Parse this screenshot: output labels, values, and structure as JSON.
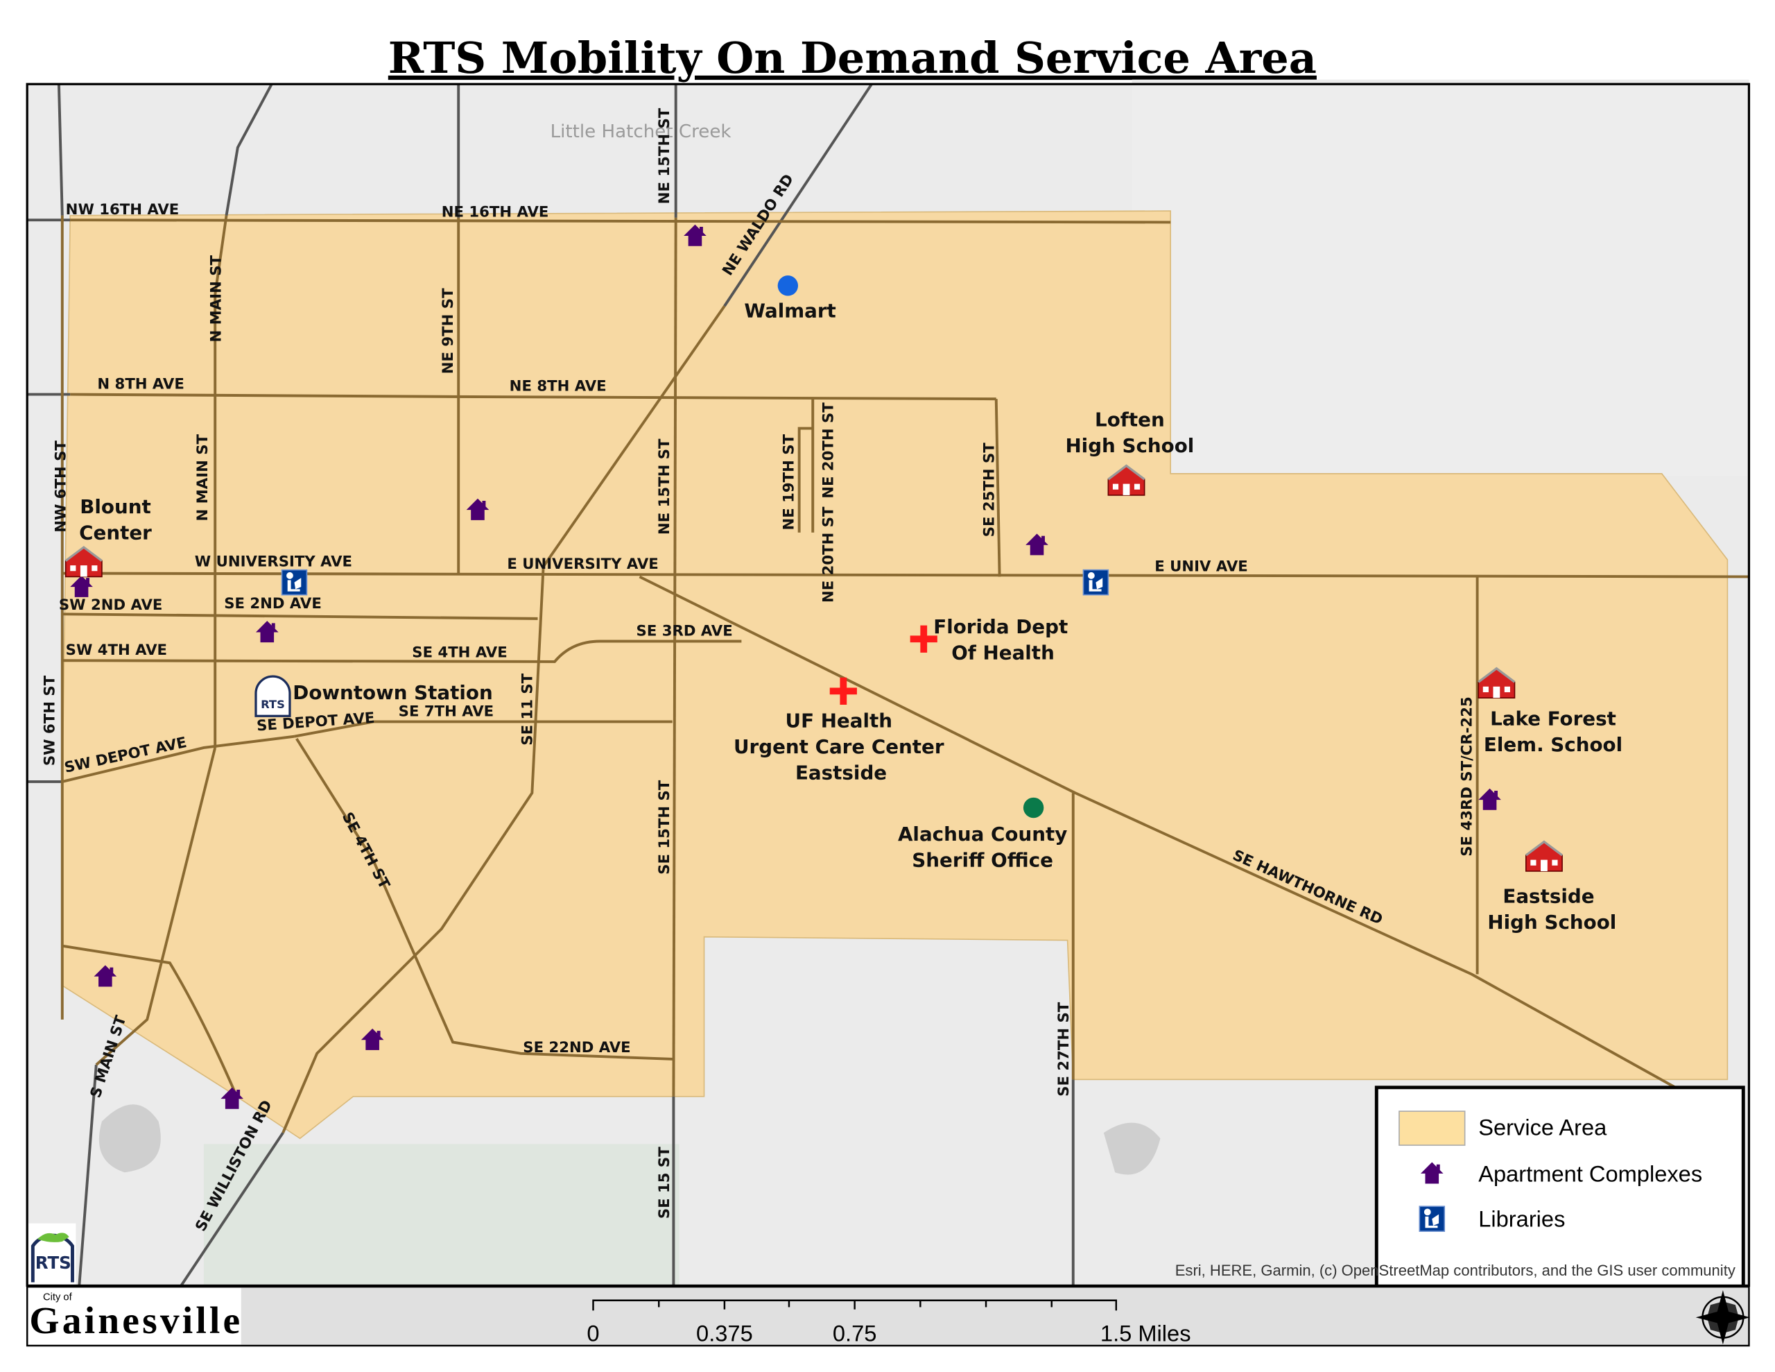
{
  "title": "RTS Mobility On Demand Service Area",
  "colors": {
    "service_area": "#f7d79c",
    "road": "#8a6a32",
    "apartment": "#4b0070",
    "library": "#003b94",
    "walmart": "#1565e0",
    "sheriff": "#0a7a4a",
    "health": "#ff1a1a",
    "school": "#d42020"
  },
  "water_label": "Little Hatchet Creek",
  "roads": {
    "nw16": "NW 16TH AVE",
    "ne16": "NE 16TH AVE",
    "n8": "N 8TH AVE",
    "ne8": "NE 8TH AVE",
    "wuniv": "W UNIVERSITY AVE",
    "euniv": "E UNIVERSITY AVE",
    "euniv2": "E UNIV AVE",
    "sw2": "SW 2ND AVE",
    "se2": "SE 2ND AVE",
    "sw4": "SW 4TH AVE",
    "se4": "SE 4TH AVE",
    "se3": "SE 3RD AVE",
    "se7": "SE 7TH AVE",
    "sedepot": "SE DEPOT AVE",
    "swdepot": "SW DEPOT AVE",
    "se22": "SE 22ND AVE",
    "nmain1": "N MAIN ST",
    "nmain2": "N MAIN ST",
    "ne9": "NE 9TH ST",
    "ne15a": "NE 15TH ST",
    "ne15b": "NE 15TH ST",
    "se15": "SE 15TH ST",
    "se15b": "SE 15 ST",
    "waldo": "NE WALDO RD",
    "ne19": "NE 19TH ST",
    "ne20a": "NE 20TH ST",
    "ne20b": "NE 20TH ST",
    "se25": "SE 25TH ST",
    "nw6": "NW 6TH ST",
    "sw6": "SW 6TH ST",
    "se11": "SE 11 ST",
    "se4st": "SE 4TH ST",
    "smain": "S MAIN ST",
    "williston": "SE WILLISTON RD",
    "hawthorne": "SE HAWTHORNE RD",
    "se27": "SE 27TH ST",
    "se43": "SE 43RD ST/CR-225"
  },
  "pois": {
    "walmart": "Walmart",
    "loften": [
      "Loften",
      "High School"
    ],
    "blount": [
      "Blount",
      "Center"
    ],
    "downtown": "Downtown Station",
    "fdoh": [
      "Florida Dept",
      "Of Health"
    ],
    "ufhealth": [
      "UF Health",
      "Urgent Care Center",
      "Eastside"
    ],
    "sheriff": [
      "Alachua County",
      "Sheriff Office"
    ],
    "lakeforest": [
      "Lake Forest",
      "Elem. School"
    ],
    "eastside": [
      "Eastside",
      "High School"
    ]
  },
  "legend": {
    "items": [
      {
        "label": "Service Area",
        "icon": "service-area-swatch"
      },
      {
        "label": "Apartment Complexes",
        "icon": "house-icon"
      },
      {
        "label": "Libraries",
        "icon": "library-icon"
      }
    ]
  },
  "attribution": "Esri, HERE, Garmin, (c) OpenStreetMap contributors, and the GIS user community",
  "scale": {
    "ticks": [
      "0",
      "0.375",
      "0.75",
      "1.5 Miles"
    ]
  },
  "logos": {
    "rts": "RTS",
    "city_small": "City of",
    "city": "Gainesville"
  }
}
